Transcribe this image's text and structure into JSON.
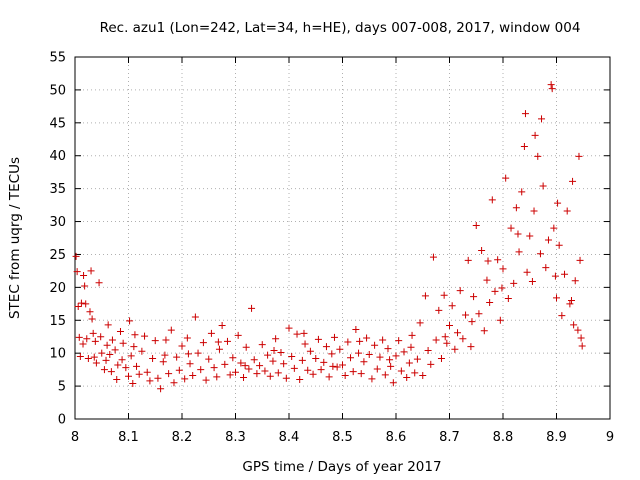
{
  "chart_data": {
    "type": "scatter",
    "title": "Rec. azu1 (Lon=242, Lat=34, h=HE), days 007-008, 2017, window 004",
    "xlabel": "GPS time / Days of year 2017",
    "ylabel": "STEC from uqrg / TECUs",
    "xlim": [
      8.0,
      9.0
    ],
    "ylim": [
      0,
      55
    ],
    "x_ticks": [
      8.0,
      8.1,
      8.2,
      8.3,
      8.4,
      8.5,
      8.6,
      8.7,
      8.8,
      8.9,
      9.0
    ],
    "x_tick_labels": [
      "8",
      "8.1",
      "8.2",
      "8.3",
      "8.4",
      "8.5",
      "8.6",
      "8.7",
      "8.8",
      "8.9",
      "9"
    ],
    "y_ticks": [
      0,
      5,
      10,
      15,
      20,
      25,
      30,
      35,
      40,
      45,
      50,
      55
    ],
    "y_tick_labels": [
      "0",
      "5",
      "10",
      "15",
      "20",
      "25",
      "30",
      "35",
      "40",
      "45",
      "50",
      "55"
    ],
    "grid": true,
    "marker": "+",
    "color": "#cc0000",
    "series": [
      {
        "name": "STEC",
        "points": [
          [
            8.002,
            24.7
          ],
          [
            8.004,
            22.4
          ],
          [
            8.006,
            17.1
          ],
          [
            8.008,
            12.4
          ],
          [
            8.01,
            9.5
          ],
          [
            8.012,
            17.6
          ],
          [
            8.016,
            21.8
          ],
          [
            8.018,
            20.2
          ],
          [
            8.02,
            17.5
          ],
          [
            8.022,
            12.2
          ],
          [
            8.025,
            9.2
          ],
          [
            8.028,
            16.3
          ],
          [
            8.03,
            22.5
          ],
          [
            8.032,
            15.2
          ],
          [
            8.034,
            13.0
          ],
          [
            8.036,
            9.4
          ],
          [
            8.038,
            11.8
          ],
          [
            8.04,
            8.5
          ],
          [
            8.045,
            20.7
          ],
          [
            8.048,
            12.5
          ],
          [
            8.05,
            10.0
          ],
          [
            8.055,
            7.5
          ],
          [
            8.06,
            11.2
          ],
          [
            8.062,
            14.3
          ],
          [
            8.065,
            9.8
          ],
          [
            8.068,
            7.2
          ],
          [
            8.07,
            12.0
          ],
          [
            8.075,
            10.5
          ],
          [
            8.078,
            6.0
          ],
          [
            8.08,
            8.2
          ],
          [
            8.085,
            13.3
          ],
          [
            8.088,
            9.0
          ],
          [
            8.09,
            11.5
          ],
          [
            8.095,
            7.8
          ],
          [
            8.1,
            6.5
          ],
          [
            8.102,
            14.9
          ],
          [
            8.105,
            9.6
          ],
          [
            8.108,
            5.4
          ],
          [
            8.11,
            11.0
          ],
          [
            8.115,
            8.0
          ],
          [
            8.12,
            6.8
          ],
          [
            8.125,
            10.3
          ],
          [
            8.13,
            12.6
          ],
          [
            8.135,
            7.1
          ],
          [
            8.14,
            5.8
          ],
          [
            8.145,
            9.2
          ],
          [
            8.15,
            11.9
          ],
          [
            8.155,
            6.2
          ],
          [
            8.16,
            4.6
          ],
          [
            8.165,
            8.7
          ],
          [
            8.17,
            12.0
          ],
          [
            8.175,
            6.9
          ],
          [
            8.18,
            13.5
          ],
          [
            8.185,
            5.5
          ],
          [
            8.19,
            9.4
          ],
          [
            8.195,
            7.4
          ],
          [
            8.2,
            11.1
          ],
          [
            8.205,
            6.1
          ],
          [
            8.21,
            12.3
          ],
          [
            8.215,
            8.4
          ],
          [
            8.22,
            6.6
          ],
          [
            8.225,
            15.5
          ],
          [
            8.23,
            10.0
          ],
          [
            8.235,
            7.5
          ],
          [
            8.24,
            11.6
          ],
          [
            8.245,
            5.9
          ],
          [
            8.25,
            9.1
          ],
          [
            8.255,
            13.0
          ],
          [
            8.26,
            7.8
          ],
          [
            8.265,
            6.4
          ],
          [
            8.27,
            10.6
          ],
          [
            8.275,
            14.2
          ],
          [
            8.28,
            8.3
          ],
          [
            8.285,
            11.8
          ],
          [
            8.29,
            6.7
          ],
          [
            8.295,
            9.3
          ],
          [
            8.3,
            7.1
          ],
          [
            8.305,
            12.7
          ],
          [
            8.31,
            8.5
          ],
          [
            8.315,
            6.3
          ],
          [
            8.32,
            10.9
          ],
          [
            8.325,
            7.6
          ],
          [
            8.33,
            16.8
          ],
          [
            8.335,
            9.0
          ],
          [
            8.34,
            6.9
          ],
          [
            8.345,
            8.1
          ],
          [
            8.35,
            11.3
          ],
          [
            8.355,
            7.3
          ],
          [
            8.36,
            9.7
          ],
          [
            8.365,
            6.5
          ],
          [
            8.37,
            8.8
          ],
          [
            8.375,
            12.2
          ],
          [
            8.38,
            7.0
          ],
          [
            8.385,
            10.1
          ],
          [
            8.39,
            8.4
          ],
          [
            8.395,
            6.2
          ],
          [
            8.4,
            13.8
          ],
          [
            8.405,
            9.5
          ],
          [
            8.41,
            7.7
          ],
          [
            8.415,
            12.9
          ],
          [
            8.42,
            6.0
          ],
          [
            8.425,
            8.9
          ],
          [
            8.43,
            11.4
          ],
          [
            8.435,
            7.4
          ],
          [
            8.44,
            10.3
          ],
          [
            8.445,
            6.8
          ],
          [
            8.45,
            9.2
          ],
          [
            8.455,
            12.1
          ],
          [
            8.46,
            7.5
          ],
          [
            8.465,
            8.6
          ],
          [
            8.47,
            11.0
          ],
          [
            8.475,
            6.4
          ],
          [
            8.48,
            9.9
          ],
          [
            8.485,
            12.4
          ],
          [
            8.49,
            7.9
          ],
          [
            8.495,
            10.6
          ],
          [
            8.5,
            8.2
          ],
          [
            8.505,
            6.6
          ],
          [
            8.51,
            11.7
          ],
          [
            8.515,
            9.3
          ],
          [
            8.52,
            7.2
          ],
          [
            8.525,
            13.6
          ],
          [
            8.53,
            10.0
          ],
          [
            8.535,
            6.9
          ],
          [
            8.54,
            8.7
          ],
          [
            8.545,
            12.3
          ],
          [
            8.55,
            9.8
          ],
          [
            8.555,
            6.1
          ],
          [
            8.56,
            11.2
          ],
          [
            8.565,
            7.6
          ],
          [
            8.57,
            9.4
          ],
          [
            8.575,
            12.0
          ],
          [
            8.58,
            6.7
          ],
          [
            8.585,
            10.7
          ],
          [
            8.59,
            8.0
          ],
          [
            8.595,
            5.5
          ],
          [
            8.6,
            9.6
          ],
          [
            8.605,
            11.9
          ],
          [
            8.61,
            7.3
          ],
          [
            8.615,
            10.2
          ],
          [
            8.62,
            6.3
          ],
          [
            8.625,
            8.5
          ],
          [
            8.63,
            12.7
          ],
          [
            8.635,
            7.0
          ],
          [
            8.64,
            9.1
          ],
          [
            8.645,
            14.6
          ],
          [
            8.65,
            6.6
          ],
          [
            8.655,
            18.7
          ],
          [
            8.66,
            10.4
          ],
          [
            8.665,
            8.3
          ],
          [
            8.67,
            24.6
          ],
          [
            8.675,
            12.0
          ],
          [
            8.68,
            16.5
          ],
          [
            8.685,
            9.2
          ],
          [
            8.69,
            18.8
          ],
          [
            8.695,
            11.5
          ],
          [
            8.7,
            14.2
          ],
          [
            8.705,
            17.2
          ],
          [
            8.71,
            10.6
          ],
          [
            8.715,
            13.1
          ],
          [
            8.72,
            19.5
          ],
          [
            8.725,
            12.2
          ],
          [
            8.73,
            15.8
          ],
          [
            8.735,
            24.1
          ],
          [
            8.74,
            11.0
          ],
          [
            8.745,
            18.6
          ],
          [
            8.75,
            29.4
          ],
          [
            8.755,
            16.0
          ],
          [
            8.76,
            25.6
          ],
          [
            8.765,
            13.4
          ],
          [
            8.77,
            21.1
          ],
          [
            8.775,
            17.7
          ],
          [
            8.78,
            33.3
          ],
          [
            8.785,
            19.4
          ],
          [
            8.79,
            24.2
          ],
          [
            8.795,
            15.0
          ],
          [
            8.8,
            22.8
          ],
          [
            8.805,
            36.6
          ],
          [
            8.81,
            18.3
          ],
          [
            8.815,
            29.0
          ],
          [
            8.82,
            20.6
          ],
          [
            8.825,
            32.1
          ],
          [
            8.83,
            25.4
          ],
          [
            8.835,
            34.5
          ],
          [
            8.84,
            41.4
          ],
          [
            8.842,
            46.4
          ],
          [
            8.845,
            22.3
          ],
          [
            8.85,
            27.8
          ],
          [
            8.855,
            20.9
          ],
          [
            8.86,
            43.1
          ],
          [
            8.865,
            39.9
          ],
          [
            8.87,
            25.1
          ],
          [
            8.872,
            45.6
          ],
          [
            8.875,
            35.4
          ],
          [
            8.88,
            23.0
          ],
          [
            8.885,
            27.2
          ],
          [
            8.89,
            50.8
          ],
          [
            8.892,
            50.2
          ],
          [
            8.895,
            29.0
          ],
          [
            8.9,
            18.4
          ],
          [
            8.902,
            32.8
          ],
          [
            8.905,
            26.4
          ],
          [
            8.91,
            15.7
          ],
          [
            8.915,
            22.0
          ],
          [
            8.92,
            31.6
          ],
          [
            8.925,
            17.5
          ],
          [
            8.93,
            36.1
          ],
          [
            8.932,
            14.3
          ],
          [
            8.935,
            21.0
          ],
          [
            8.94,
            13.5
          ],
          [
            8.942,
            39.9
          ],
          [
            8.944,
            24.1
          ],
          [
            8.946,
            12.3
          ],
          [
            8.948,
            11.1
          ],
          [
            8.015,
            11.4
          ],
          [
            8.058,
            8.9
          ],
          [
            8.112,
            12.8
          ],
          [
            8.168,
            9.7
          ],
          [
            8.212,
            9.9
          ],
          [
            8.268,
            11.7
          ],
          [
            8.318,
            8.1
          ],
          [
            8.372,
            10.4
          ],
          [
            8.428,
            13.0
          ],
          [
            8.482,
            8.0
          ],
          [
            8.532,
            11.8
          ],
          [
            8.588,
            9.0
          ],
          [
            8.628,
            10.9
          ],
          [
            8.692,
            12.5
          ],
          [
            8.742,
            14.8
          ],
          [
            8.772,
            24.0
          ],
          [
            8.798,
            19.9
          ],
          [
            8.828,
            28.1
          ],
          [
            8.858,
            31.6
          ],
          [
            8.898,
            21.7
          ],
          [
            8.928,
            18.0
          ]
        ]
      }
    ]
  }
}
